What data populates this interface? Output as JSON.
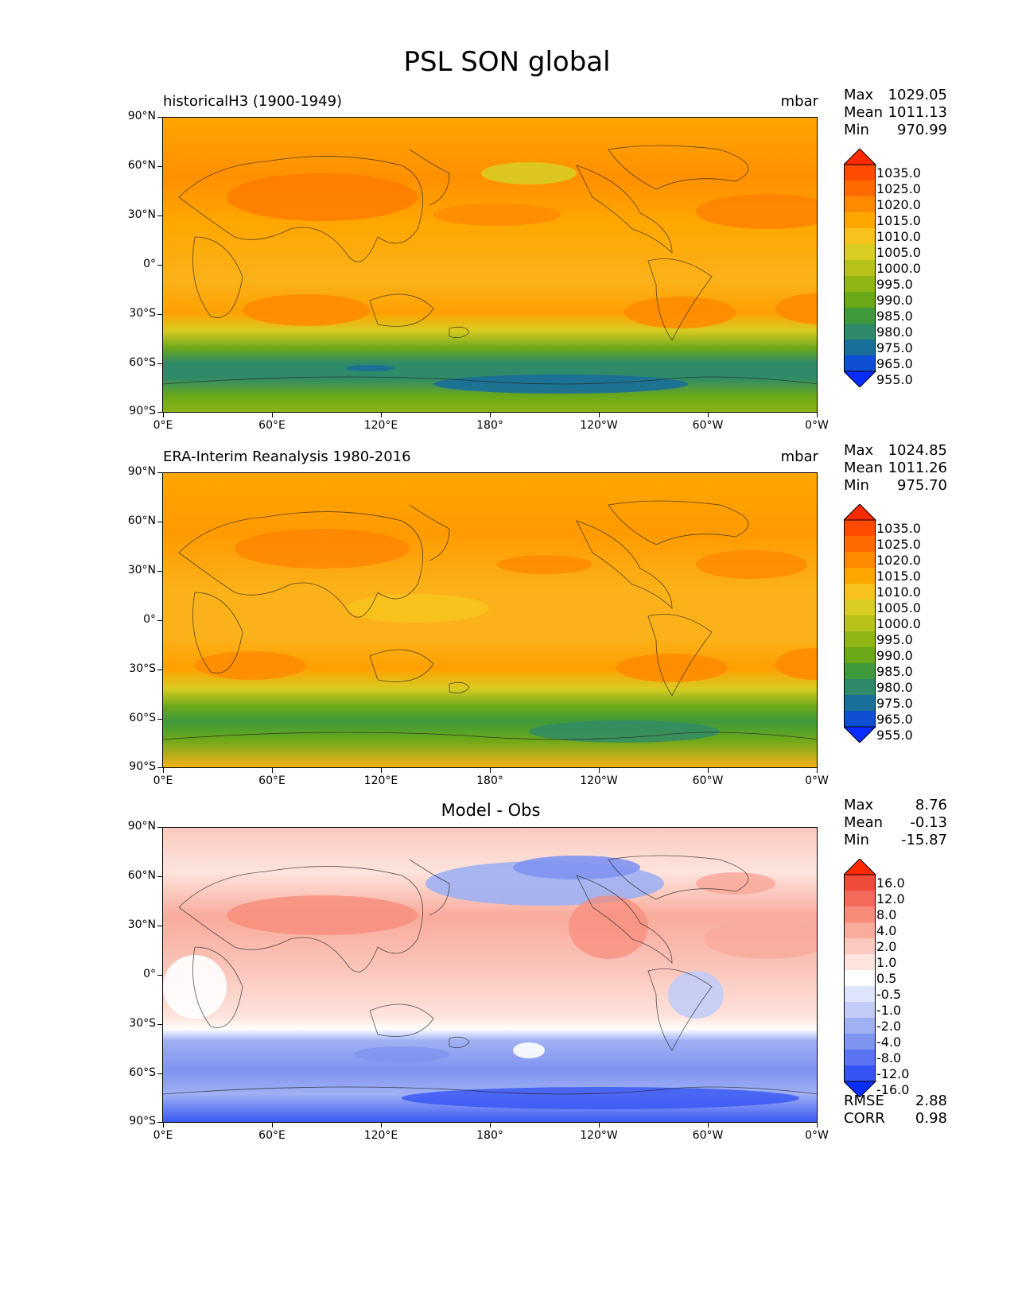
{
  "figure": {
    "title": "PSL SON global"
  },
  "axes": {
    "yticks": [
      "90°N",
      "60°N",
      "30°N",
      "0°",
      "30°S",
      "60°S",
      "90°S"
    ],
    "xticks": [
      "0°E",
      "60°E",
      "120°E",
      "180°",
      "120°W",
      "60°W",
      "0°W"
    ]
  },
  "panels": [
    {
      "title": "historicalH3 (1900-1949)",
      "units": "mbar",
      "stats": {
        "max_label": "Max",
        "max": "1029.05",
        "mean_label": "Mean",
        "mean": "1011.13",
        "min_label": "Min",
        "min": "970.99"
      },
      "colorbar": [
        "1035.0",
        "1025.0",
        "1020.0",
        "1015.0",
        "1010.0",
        "1005.0",
        "1000.0",
        "995.0",
        "990.0",
        "985.0",
        "980.0",
        "975.0",
        "965.0",
        "955.0"
      ]
    },
    {
      "title": "ERA-Interim Reanalysis 1980-2016",
      "units": "mbar",
      "stats": {
        "max_label": "Max",
        "max": "1024.85",
        "mean_label": "Mean",
        "mean": "1011.26",
        "min_label": "Min",
        "min": "975.70"
      },
      "colorbar": [
        "1035.0",
        "1025.0",
        "1020.0",
        "1015.0",
        "1010.0",
        "1005.0",
        "1000.0",
        "995.0",
        "990.0",
        "985.0",
        "980.0",
        "975.0",
        "965.0",
        "955.0"
      ]
    },
    {
      "title": "Model - Obs",
      "units": "",
      "stats": {
        "max_label": "Max",
        "max": "8.76",
        "mean_label": "Mean",
        "mean": "-0.13",
        "min_label": "Min",
        "min": "-15.87"
      },
      "colorbar": [
        "16.0",
        "12.0",
        "8.0",
        "4.0",
        "2.0",
        "1.0",
        "0.5",
        "-0.5",
        "-1.0",
        "-2.0",
        "-4.0",
        "-8.0",
        "-12.0",
        "-16.0"
      ],
      "rmse_label": "RMSE",
      "rmse": "2.88",
      "corr_label": "CORR",
      "corr": "0.98"
    }
  ],
  "colors": {
    "abs_scale": [
      "#ff2a00",
      "#ff4a00",
      "#ff6a00",
      "#ff8a00",
      "#ffa600",
      "#f8c21c",
      "#d9cc22",
      "#b6c21a",
      "#8fb514",
      "#6aa81a",
      "#3f9a3c",
      "#2f8a6a",
      "#1a6e9a",
      "#0f4fd4",
      "#0a2dff"
    ],
    "diff_scale": [
      "#ff2a00",
      "#f04a38",
      "#f36a5a",
      "#f78c7a",
      "#f9ab9c",
      "#fbc9bf",
      "#fde4dd",
      "#ffffff",
      "#dde4fb",
      "#c2ccf7",
      "#9fb0f3",
      "#7f93f0",
      "#5a73f0",
      "#3654f4",
      "#0a2dff"
    ]
  }
}
